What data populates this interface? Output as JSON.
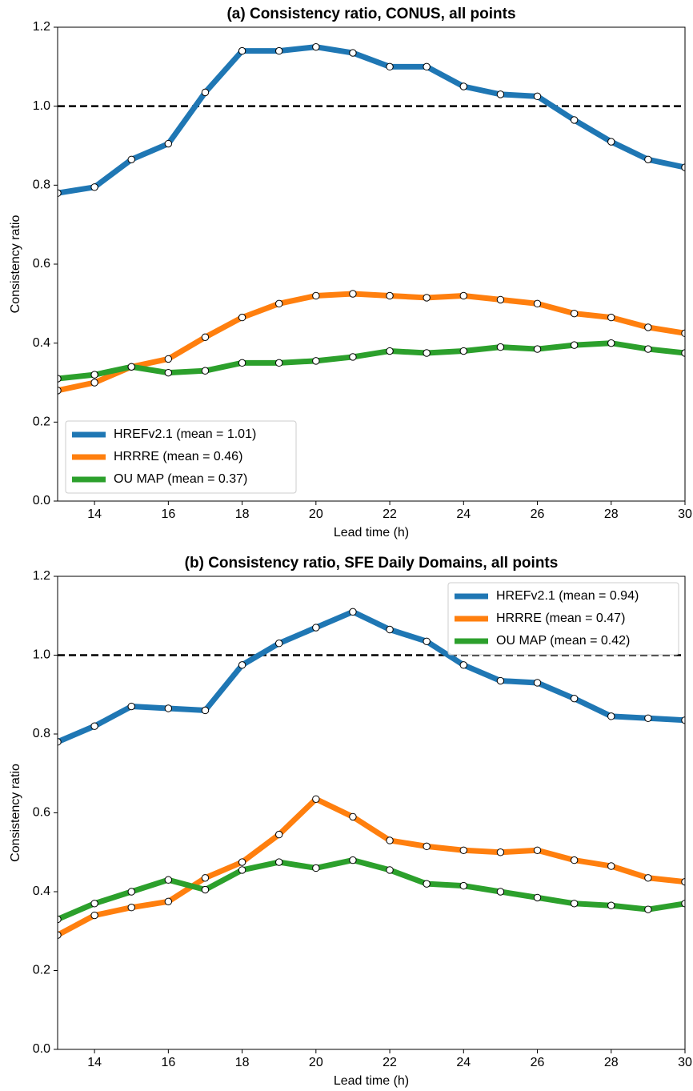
{
  "chart_data": [
    {
      "type": "line",
      "title": "(a) Consistency ratio, CONUS, all points",
      "xlabel": "Lead time (h)",
      "ylabel": "Consistency ratio",
      "x": [
        13,
        14,
        15,
        16,
        17,
        18,
        19,
        20,
        21,
        22,
        23,
        24,
        25,
        26,
        27,
        28,
        29,
        30
      ],
      "series": [
        {
          "name": "HREFv2.1 (mean = 1.01)",
          "color": "#1f77b4",
          "values": [
            0.78,
            0.795,
            0.865,
            0.905,
            1.035,
            1.14,
            1.14,
            1.15,
            1.135,
            1.1,
            1.1,
            1.05,
            1.03,
            1.025,
            0.965,
            0.91,
            0.865,
            0.845
          ]
        },
        {
          "name": "HRRRE (mean = 0.46)",
          "color": "#ff7f0e",
          "values": [
            0.28,
            0.3,
            0.34,
            0.36,
            0.415,
            0.465,
            0.5,
            0.52,
            0.525,
            0.52,
            0.515,
            0.52,
            0.51,
            0.5,
            0.475,
            0.465,
            0.44,
            0.425
          ]
        },
        {
          "name": "OU MAP (mean = 0.37)",
          "color": "#2ca02c",
          "values": [
            0.31,
            0.32,
            0.34,
            0.325,
            0.33,
            0.35,
            0.35,
            0.355,
            0.365,
            0.38,
            0.375,
            0.38,
            0.39,
            0.385,
            0.395,
            0.4,
            0.385,
            0.375
          ]
        }
      ],
      "xlim": [
        13,
        30
      ],
      "xticks": [
        14,
        16,
        18,
        20,
        22,
        24,
        26,
        28,
        30
      ],
      "ylim": [
        0,
        1.2
      ],
      "yticks": [
        {
          "value": 0,
          "label": "0.0"
        },
        0.2,
        0.4,
        0.6,
        0.8,
        {
          "value": 1,
          "label": "1.0"
        },
        1.2
      ],
      "hline": 1,
      "legend": "lower left"
    },
    {
      "type": "line",
      "title": "(b) Consistency ratio, SFE Daily Domains, all points",
      "xlabel": "Lead time (h)",
      "ylabel": "Consistency ratio",
      "x": [
        13,
        14,
        15,
        16,
        17,
        18,
        19,
        20,
        21,
        22,
        23,
        24,
        25,
        26,
        27,
        28,
        29,
        30
      ],
      "series": [
        {
          "name": "HREFv2.1 (mean = 0.94)",
          "color": "#1f77b4",
          "values": [
            0.78,
            0.82,
            0.87,
            0.865,
            0.86,
            0.975,
            1.03,
            1.07,
            1.11,
            1.065,
            1.035,
            0.975,
            0.935,
            0.93,
            0.89,
            0.845,
            0.84,
            0.835
          ]
        },
        {
          "name": "HRRRE (mean = 0.47)",
          "color": "#ff7f0e",
          "values": [
            0.29,
            0.34,
            0.36,
            0.375,
            0.435,
            0.475,
            0.545,
            0.635,
            0.59,
            0.53,
            0.515,
            0.505,
            0.5,
            0.505,
            0.48,
            0.465,
            0.435,
            0.425
          ]
        },
        {
          "name": "OU MAP (mean = 0.42)",
          "color": "#2ca02c",
          "values": [
            0.33,
            0.37,
            0.4,
            0.43,
            0.405,
            0.455,
            0.475,
            0.46,
            0.48,
            0.455,
            0.42,
            0.415,
            0.4,
            0.385,
            0.37,
            0.365,
            0.355,
            0.37
          ]
        }
      ],
      "xlim": [
        13,
        30
      ],
      "xticks": [
        14,
        16,
        18,
        20,
        22,
        24,
        26,
        28,
        30
      ],
      "ylim": [
        0,
        1.2
      ],
      "yticks": [
        {
          "value": 0,
          "label": "0.0"
        },
        0.2,
        0.4,
        0.6,
        0.8,
        {
          "value": 1,
          "label": "1.0"
        },
        1.2
      ],
      "hline": 1,
      "legend": "upper right"
    }
  ]
}
